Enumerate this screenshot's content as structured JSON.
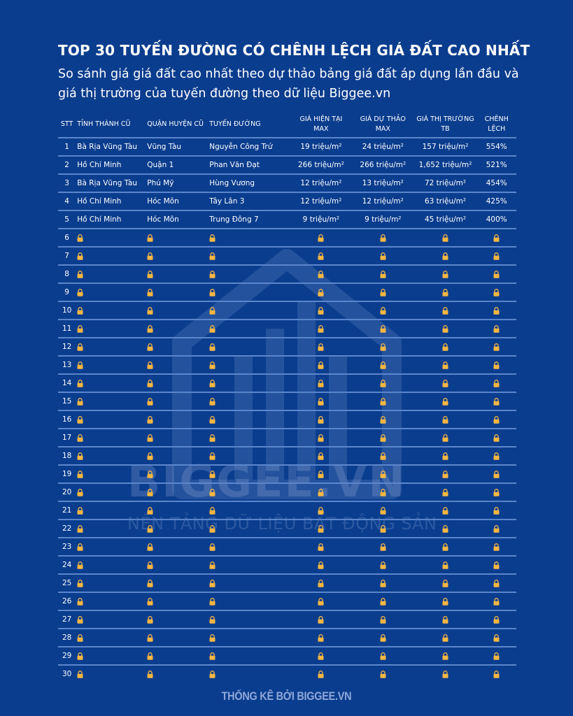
{
  "header": {
    "title": "TOP 30 TUYẾN ĐƯỜNG CÓ CHÊNH LỆCH GIÁ ĐẤT CAO NHẤT",
    "subtitle": "So sánh giá giá đất cao nhất theo dự thảo bảng giá đất áp dụng lần đầu và giá thị trường của tuyến đường theo dữ liệu Biggee.vn"
  },
  "watermark": {
    "brand": "BIGGEE.VN",
    "tagline": "NỀN TẢNG DỮ LIỆU BẤT ĐỘNG SẢN"
  },
  "table": {
    "columns": [
      "STT",
      "TỈNH THÀNH CŨ",
      "QUẬN HUYỆN CŨ",
      "TUYẾN ĐƯỜNG",
      "GIÁ HIỆN TẠI MAX",
      "GIÁ DỰ THẢO MAX",
      "GIÁ THỊ TRƯỜNG TB",
      "CHÊNH LỆCH"
    ],
    "rows": [
      [
        "1",
        "Bà Rịa Vũng Tàu",
        "Vũng Tàu",
        "Nguyễn Công Trứ",
        "19 triệu/m²",
        "24 triệu/m²",
        "157 triệu/m²",
        "554%"
      ],
      [
        "2",
        "Hồ Chí Minh",
        "Quận 1",
        "Phan Văn Đạt",
        "266 triệu/m²",
        "266 triệu/m²",
        "1,652 triệu/m²",
        "521%"
      ],
      [
        "3",
        "Bà Rịa Vũng Tàu",
        "Phú Mỹ",
        "Hùng Vương",
        "12 triệu/m²",
        "13 triệu/m²",
        "72 triệu/m²",
        "454%"
      ],
      [
        "4",
        "Hồ Chí Minh",
        "Hóc Môn",
        "Tây Lân 3",
        "12 triệu/m²",
        "12 triệu/m²",
        "63 triệu/m²",
        "425%"
      ],
      [
        "5",
        "Hồ Chí Minh",
        "Hóc Môn",
        "Trung Đông 7",
        "9 triệu/m²",
        "9 triệu/m²",
        "45 triệu/m²",
        "400%"
      ]
    ],
    "locked_rows": [
      "6",
      "7",
      "8",
      "9",
      "10",
      "11",
      "12",
      "13",
      "14",
      "15",
      "16",
      "17",
      "18",
      "19",
      "20",
      "21",
      "22",
      "23",
      "24",
      "25",
      "26",
      "27",
      "28",
      "29",
      "30"
    ],
    "lock_icon": "lock-icon",
    "lock_color": "#f5b642"
  },
  "footer": {
    "text": "THỐNG KÊ BỞI BIGGEE.VN"
  }
}
